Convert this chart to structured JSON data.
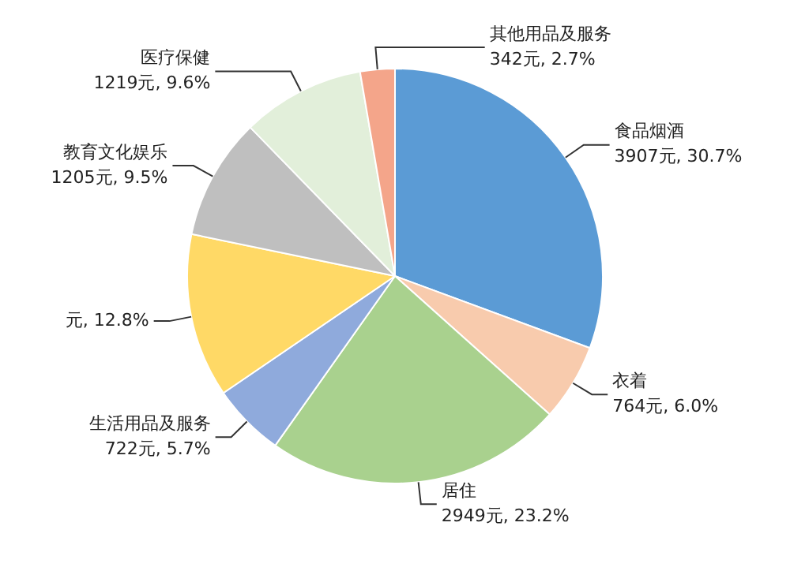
{
  "chart_data": {
    "type": "pie",
    "categories": [
      "食品烟酒",
      "衣着",
      "居住",
      "生活用品及服务",
      null,
      "教育文化娱乐",
      "医疗保健",
      "其他用品及服务"
    ],
    "values": [
      30.7,
      6.0,
      23.2,
      5.7,
      12.8,
      9.5,
      9.6,
      2.7
    ],
    "value_labels": [
      "3907元, 30.7%",
      "764元, 6.0%",
      "2949元, 23.2%",
      "722元, 5.7%",
      "元, 12.8%",
      "1205元, 9.5%",
      "1219元, 9.6%",
      "342元, 2.7%"
    ],
    "colors": [
      "#5b9bd5",
      "#f8cbad",
      "#a9d18e",
      "#8faadc",
      "#ffd966",
      "#bfbfbf",
      "#e2efda",
      "#f4a58a"
    ],
    "legend": false
  }
}
